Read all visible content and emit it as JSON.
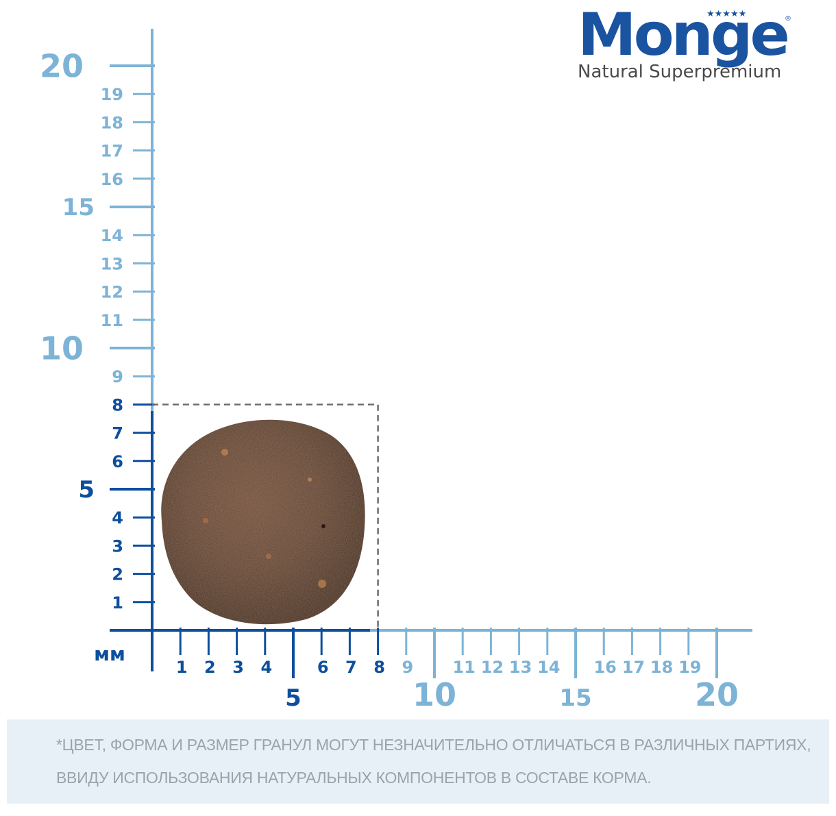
{
  "brand": {
    "name": "Monge",
    "stars": "★★★★★",
    "registered_mark": "®",
    "tagline": "Natural Superpremium"
  },
  "measurement": {
    "unit_label": "мм",
    "x_axis": {
      "major_labels": [
        "5",
        "10",
        "15",
        "20"
      ],
      "minor_labels": [
        "1",
        "2",
        "3",
        "4",
        "6",
        "7",
        "8",
        "9",
        "11",
        "12",
        "13",
        "14",
        "16",
        "17",
        "18",
        "19"
      ]
    },
    "y_axis": {
      "major_labels": [
        "5",
        "10",
        "15",
        "20"
      ],
      "minor_labels": [
        "1",
        "2",
        "3",
        "4",
        "6",
        "7",
        "8",
        "9",
        "11",
        "12",
        "13",
        "14",
        "16",
        "17",
        "18",
        "19"
      ]
    },
    "kibble_size_mm": {
      "width": 8,
      "height": 8
    },
    "highlight_color": "#0d4f9c",
    "scale_color": "#7db3d6"
  },
  "disclaimer": {
    "line1": "*ЦВЕТ, ФОРМА И РАЗМЕР ГРАНУЛ МОГУТ НЕЗНАЧИТЕЛЬНО ОТЛИЧАТЬСЯ В РАЗЛИЧНЫХ ПАРТИЯХ,",
    "line2": "ВВИДУ ИСПОЛЬЗОВАНИЯ НАТУРАЛЬНЫХ КОМПОНЕНТОВ В СОСТАВЕ КОРМА."
  }
}
